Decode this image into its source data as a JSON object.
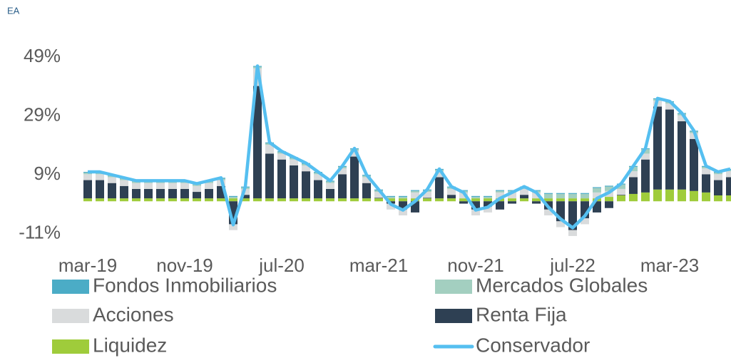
{
  "chart_data": {
    "type": "bar",
    "stacked": true,
    "legend": "bottom",
    "unit_label": "EA",
    "categories": [
      "mar-19",
      null,
      null,
      null,
      null,
      null,
      null,
      null,
      "nov-19",
      null,
      null,
      null,
      null,
      null,
      null,
      null,
      "jul-20",
      null,
      null,
      null,
      null,
      null,
      null,
      null,
      "mar-21",
      null,
      null,
      null,
      null,
      null,
      null,
      null,
      "nov-21",
      null,
      null,
      null,
      null,
      null,
      null,
      null,
      "jul-22",
      null,
      null,
      null,
      null,
      null,
      null,
      null,
      "mar-23",
      null,
      null,
      null,
      null,
      null
    ],
    "ylim": [
      -14,
      50
    ],
    "yticks": [
      {
        "value": -11,
        "label": "-11%"
      },
      {
        "value": 9,
        "label": "9%"
      },
      {
        "value": 29,
        "label": "29%"
      },
      {
        "value": 49,
        "label": "49%"
      }
    ],
    "series": [
      {
        "name": "Fondos Inmobiliarios",
        "color": "#4bacc6",
        "values": [
          0.3,
          0.3,
          0.3,
          0.3,
          0.3,
          0.3,
          0.3,
          0.3,
          0.3,
          0.3,
          0.3,
          0.3,
          0.3,
          0.3,
          0.3,
          0.3,
          0.3,
          0.3,
          0.3,
          0.3,
          0.3,
          0.3,
          0.3,
          0.3,
          0.3,
          0.3,
          0.3,
          0.3,
          0.3,
          0.3,
          0.3,
          0.3,
          0.3,
          0.3,
          0.3,
          0.3,
          0.3,
          0.3,
          0.3,
          0.3,
          0.3,
          0.3,
          0.3,
          0.3,
          0.3,
          0.3,
          0.3,
          0.3,
          0.3,
          0.3,
          0.3,
          0.3,
          0.3,
          0.3
        ]
      },
      {
        "name": "Mercados Globales",
        "color": "#a3cfc0",
        "values": [
          0.5,
          0.5,
          0.5,
          0.5,
          0.5,
          0.5,
          0.5,
          0.5,
          0.5,
          0.5,
          0.5,
          0.5,
          0.5,
          0.5,
          0.5,
          0.5,
          0.5,
          0.5,
          0.5,
          0.5,
          0.5,
          0.5,
          0.5,
          0.5,
          0.5,
          0.5,
          0.5,
          0.5,
          0.5,
          0.5,
          0.5,
          0.5,
          0.5,
          0.5,
          0.5,
          0.5,
          0.5,
          0.5,
          1.5,
          1.5,
          1.5,
          1.5,
          1.5,
          1.5,
          1.5,
          1.5,
          1.5,
          0.5,
          0.5,
          0.5,
          0.5,
          0.5,
          0.5,
          0.5
        ]
      },
      {
        "name": "Acciones",
        "color": "#d9dbdc",
        "values": [
          2,
          2,
          2,
          2,
          2,
          2,
          2,
          2,
          2,
          2,
          2,
          2,
          -2,
          2,
          6,
          3,
          2,
          2,
          2,
          2,
          2,
          2,
          2,
          2,
          2,
          -2,
          -2,
          2,
          2,
          2,
          2,
          2,
          -2,
          -2,
          2,
          2,
          2,
          2,
          -2,
          -2,
          -2,
          -2,
          2,
          2,
          2,
          2,
          2,
          2,
          2,
          2,
          2,
          2,
          2,
          2
        ]
      },
      {
        "name": "Renta Fija",
        "color": "#2e4053",
        "values": [
          6.2,
          6.2,
          5.2,
          4.2,
          3.2,
          3.2,
          3.2,
          3.2,
          3.2,
          2.2,
          3.2,
          4.2,
          -7.8,
          1.2,
          38.2,
          15.2,
          13.2,
          11.2,
          9.2,
          6.2,
          3.2,
          8.2,
          14.2,
          5.2,
          0.2,
          -0.8,
          -2.8,
          -3.8,
          0.2,
          7.2,
          1.2,
          -0.8,
          -2.8,
          -1.8,
          -2.8,
          -0.8,
          1.2,
          -0.8,
          -2.8,
          -6.8,
          -9.8,
          -5.8,
          -3.8,
          -2.3,
          0.2,
          5.7,
          11.2,
          28.2,
          27.2,
          23.2,
          17.7,
          6.2,
          5.2,
          6.2
        ]
      },
      {
        "name": "Liquidez",
        "color": "#9fcc3b",
        "values": [
          1,
          1,
          1,
          1,
          1,
          1,
          1,
          1,
          1,
          1,
          1,
          1,
          1,
          1,
          1,
          1,
          1,
          1,
          1,
          1,
          1,
          1,
          1,
          1,
          1,
          1,
          1,
          1,
          1,
          1,
          1,
          1,
          1,
          1,
          1,
          1,
          1,
          1,
          1,
          1,
          1,
          1,
          1,
          1.5,
          2,
          2.5,
          3,
          4,
          4,
          4,
          3.5,
          3,
          2,
          2
        ]
      },
      {
        "name": "Conservador",
        "type": "line",
        "color": "#55bff0",
        "values": [
          10,
          10,
          9,
          8,
          7,
          7,
          7,
          7,
          7,
          6,
          7,
          8,
          -8,
          5,
          46,
          20,
          17,
          15,
          13,
          10,
          7,
          12,
          18,
          9,
          4,
          -1,
          -3,
          0,
          4,
          11,
          5,
          3,
          -3,
          -2,
          1,
          3,
          5,
          3,
          -2,
          -6,
          -9,
          -5,
          1,
          3,
          6,
          12,
          18,
          35,
          34,
          30,
          24,
          12,
          10,
          11
        ]
      }
    ]
  }
}
